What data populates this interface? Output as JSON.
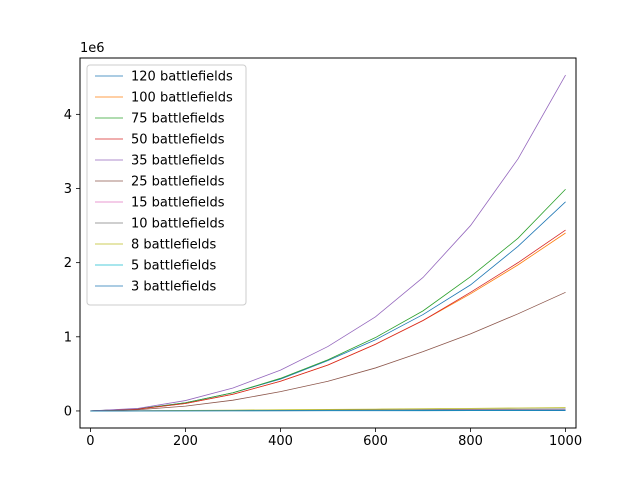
{
  "chart_data": {
    "type": "line",
    "title": "",
    "xlabel": "",
    "ylabel": "",
    "offset_text": "1e6",
    "xlim": [
      -22,
      1022
    ],
    "ylim": [
      -0.23,
      4.76
    ],
    "xticks": [
      0,
      200,
      400,
      600,
      800,
      1000
    ],
    "xtick_labels": [
      "0",
      "200",
      "400",
      "600",
      "800",
      "1000"
    ],
    "yticks": [
      0,
      1,
      2,
      3,
      4
    ],
    "ytick_labels": [
      "0",
      "1",
      "2",
      "3",
      "4"
    ],
    "grid": false,
    "legend_position": "upper-left",
    "x": [
      0,
      100,
      200,
      300,
      400,
      500,
      600,
      700,
      800,
      900,
      1000
    ],
    "series": [
      {
        "name": "120 battlefields",
        "color": "#1f77b4",
        "values": [
          0,
          0.027,
          0.11,
          0.245,
          0.43,
          0.68,
          0.96,
          1.3,
          1.7,
          2.22,
          2.82
        ]
      },
      {
        "name": "100 battlefields",
        "color": "#ff7f0e",
        "values": [
          0,
          0.025,
          0.1,
          0.225,
          0.4,
          0.62,
          0.9,
          1.22,
          1.58,
          1.97,
          2.4
        ]
      },
      {
        "name": "75 battlefields",
        "color": "#2ca02c",
        "values": [
          0,
          0.028,
          0.11,
          0.245,
          0.44,
          0.69,
          0.99,
          1.35,
          1.81,
          2.33,
          2.99
        ]
      },
      {
        "name": "50 battlefields",
        "color": "#d62728",
        "values": [
          0,
          0.025,
          0.1,
          0.225,
          0.4,
          0.62,
          0.9,
          1.22,
          1.6,
          2.0,
          2.44
        ]
      },
      {
        "name": "35 battlefields",
        "color": "#9467bd",
        "values": [
          0,
          0.035,
          0.14,
          0.31,
          0.55,
          0.87,
          1.27,
          1.8,
          2.5,
          3.4,
          4.53
        ]
      },
      {
        "name": "25 battlefields",
        "color": "#8c564b",
        "values": [
          0,
          0.016,
          0.065,
          0.145,
          0.26,
          0.4,
          0.58,
          0.8,
          1.04,
          1.31,
          1.6
        ]
      },
      {
        "name": "15 battlefields",
        "color": "#e377c2",
        "values": [
          0,
          0.001,
          0.003,
          0.005,
          0.007,
          0.009,
          0.011,
          0.013,
          0.015,
          0.017,
          0.019
        ]
      },
      {
        "name": "10 battlefields",
        "color": "#7f7f7f",
        "values": [
          0,
          0.0015,
          0.004,
          0.007,
          0.01,
          0.013,
          0.016,
          0.019,
          0.022,
          0.025,
          0.028
        ]
      },
      {
        "name": "8 battlefields",
        "color": "#bcbd22",
        "values": [
          0,
          0.003,
          0.007,
          0.011,
          0.016,
          0.021,
          0.025,
          0.03,
          0.035,
          0.04,
          0.045
        ]
      },
      {
        "name": "5 battlefields",
        "color": "#17becf",
        "values": [
          0,
          0.001,
          0.002,
          0.003,
          0.004,
          0.005,
          0.006,
          0.007,
          0.008,
          0.009,
          0.01
        ]
      },
      {
        "name": "3 battlefields",
        "color": "#1f77b4",
        "values": [
          0,
          0.0005,
          0.001,
          0.0015,
          0.002,
          0.0025,
          0.003,
          0.0035,
          0.004,
          0.0045,
          0.005
        ]
      }
    ]
  }
}
